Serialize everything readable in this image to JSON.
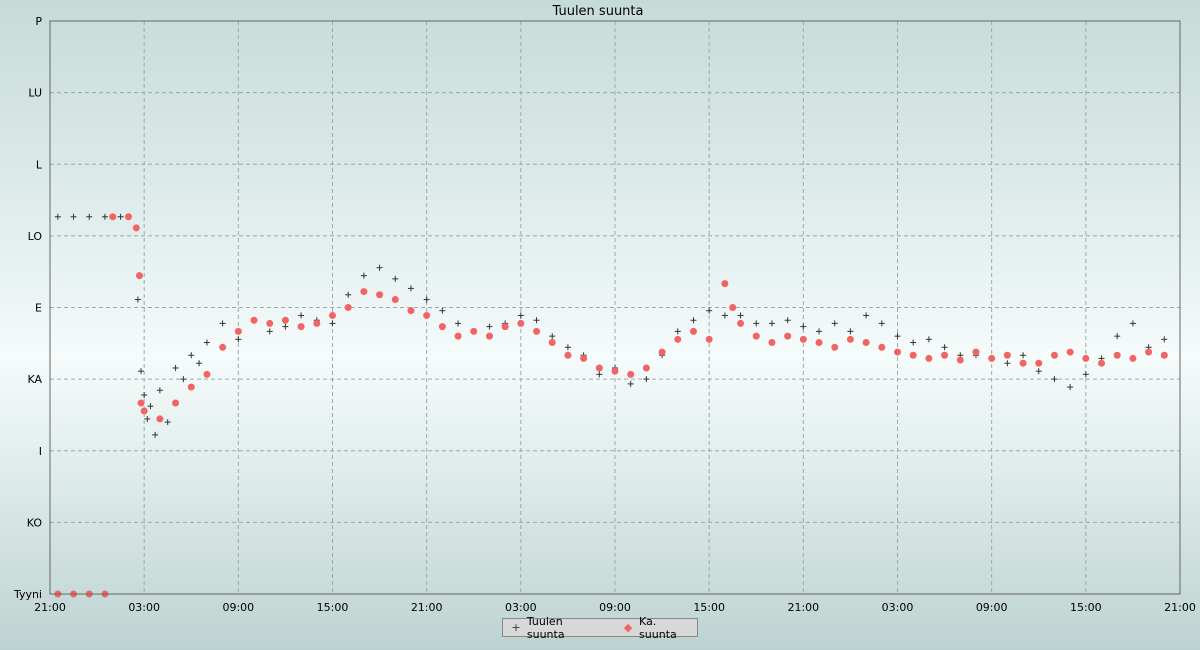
{
  "chart_data": {
    "type": "scatter",
    "title": "Tuulen suunta",
    "xlabel": "",
    "ylabel": "",
    "x_tick_labels": [
      "21:00",
      "03:00",
      "09:00",
      "15:00",
      "21:00",
      "03:00",
      "09:00",
      "15:00",
      "21:00",
      "03:00",
      "09:00",
      "15:00",
      "21:00"
    ],
    "x_range_hours": [
      0,
      72
    ],
    "y_tick_labels": [
      "Tyyni",
      "KO",
      "I",
      "KA",
      "E",
      "LO",
      "L",
      "LU",
      "P"
    ],
    "y_range": [
      0,
      360
    ],
    "grid": true,
    "legend_position": "bottom-center",
    "series": [
      {
        "name": "Tuulen suunta",
        "marker": "+",
        "color": "#333333",
        "points": [
          [
            0.5,
            237
          ],
          [
            1.5,
            237
          ],
          [
            2.5,
            237
          ],
          [
            3.5,
            237
          ],
          [
            4.5,
            237
          ],
          [
            5.0,
            237
          ],
          [
            5.6,
            185
          ],
          [
            5.8,
            140
          ],
          [
            6.0,
            125
          ],
          [
            6.2,
            110
          ],
          [
            6.4,
            118
          ],
          [
            6.7,
            100
          ],
          [
            7.0,
            128
          ],
          [
            7.5,
            108
          ],
          [
            8.0,
            142
          ],
          [
            8.5,
            135
          ],
          [
            9.0,
            150
          ],
          [
            9.5,
            145
          ],
          [
            10.0,
            158
          ],
          [
            11.0,
            170
          ],
          [
            12.0,
            160
          ],
          [
            13.0,
            172
          ],
          [
            14.0,
            165
          ],
          [
            15.0,
            168
          ],
          [
            16.0,
            175
          ],
          [
            17.0,
            172
          ],
          [
            18.0,
            170
          ],
          [
            19.0,
            188
          ],
          [
            20.0,
            200
          ],
          [
            21.0,
            205
          ],
          [
            22.0,
            198
          ],
          [
            23.0,
            192
          ],
          [
            24.0,
            185
          ],
          [
            25.0,
            178
          ],
          [
            26.0,
            170
          ],
          [
            27.0,
            165
          ],
          [
            28.0,
            168
          ],
          [
            29.0,
            170
          ],
          [
            30.0,
            175
          ],
          [
            31.0,
            172
          ],
          [
            32.0,
            162
          ],
          [
            33.0,
            155
          ],
          [
            34.0,
            150
          ],
          [
            35.0,
            138
          ],
          [
            36.0,
            142
          ],
          [
            37.0,
            132
          ],
          [
            38.0,
            135
          ],
          [
            39.0,
            150
          ],
          [
            40.0,
            165
          ],
          [
            41.0,
            172
          ],
          [
            42.0,
            178
          ],
          [
            43.0,
            175
          ],
          [
            44.0,
            175
          ],
          [
            45.0,
            170
          ],
          [
            46.0,
            170
          ],
          [
            47.0,
            172
          ],
          [
            48.0,
            168
          ],
          [
            49.0,
            165
          ],
          [
            50.0,
            170
          ],
          [
            51.0,
            165
          ],
          [
            52.0,
            175
          ],
          [
            53.0,
            170
          ],
          [
            54.0,
            162
          ],
          [
            55.0,
            158
          ],
          [
            56.0,
            160
          ],
          [
            57.0,
            155
          ],
          [
            58.0,
            150
          ],
          [
            59.0,
            150
          ],
          [
            60.0,
            148
          ],
          [
            61.0,
            145
          ],
          [
            62.0,
            150
          ],
          [
            63.0,
            140
          ],
          [
            64.0,
            135
          ],
          [
            65.0,
            130
          ],
          [
            66.0,
            138
          ],
          [
            67.0,
            148
          ],
          [
            68.0,
            162
          ],
          [
            69.0,
            170
          ],
          [
            70.0,
            155
          ],
          [
            71.0,
            160
          ]
        ]
      },
      {
        "name": "Ka. suunta",
        "marker": "dot",
        "color": "#f26464",
        "points": [
          [
            4.0,
            237
          ],
          [
            5.0,
            237
          ],
          [
            5.5,
            230
          ],
          [
            5.7,
            200
          ],
          [
            5.8,
            120
          ],
          [
            6.0,
            115
          ],
          [
            7.0,
            110
          ],
          [
            8.0,
            120
          ],
          [
            9.0,
            130
          ],
          [
            10.0,
            138
          ],
          [
            11.0,
            155
          ],
          [
            12.0,
            165
          ],
          [
            13.0,
            172
          ],
          [
            14.0,
            170
          ],
          [
            15.0,
            172
          ],
          [
            16.0,
            168
          ],
          [
            17.0,
            170
          ],
          [
            18.0,
            175
          ],
          [
            19.0,
            180
          ],
          [
            20.0,
            190
          ],
          [
            21.0,
            188
          ],
          [
            22.0,
            185
          ],
          [
            23.0,
            178
          ],
          [
            24.0,
            175
          ],
          [
            25.0,
            168
          ],
          [
            26.0,
            162
          ],
          [
            27.0,
            165
          ],
          [
            28.0,
            162
          ],
          [
            29.0,
            168
          ],
          [
            30.0,
            170
          ],
          [
            31.0,
            165
          ],
          [
            32.0,
            158
          ],
          [
            33.0,
            150
          ],
          [
            34.0,
            148
          ],
          [
            35.0,
            142
          ],
          [
            36.0,
            140
          ],
          [
            37.0,
            138
          ],
          [
            38.0,
            142
          ],
          [
            39.0,
            152
          ],
          [
            40.0,
            160
          ],
          [
            41.0,
            165
          ],
          [
            42.0,
            160
          ],
          [
            43.0,
            195
          ],
          [
            43.5,
            180
          ],
          [
            44.0,
            170
          ],
          [
            45.0,
            162
          ],
          [
            46.0,
            158
          ],
          [
            47.0,
            162
          ],
          [
            48.0,
            160
          ],
          [
            49.0,
            158
          ],
          [
            50.0,
            155
          ],
          [
            51.0,
            160
          ],
          [
            52.0,
            158
          ],
          [
            53.0,
            155
          ],
          [
            54.0,
            152
          ],
          [
            55.0,
            150
          ],
          [
            56.0,
            148
          ],
          [
            57.0,
            150
          ],
          [
            58.0,
            147
          ],
          [
            59.0,
            152
          ],
          [
            60.0,
            148
          ],
          [
            61.0,
            150
          ],
          [
            62.0,
            145
          ],
          [
            63.0,
            145
          ],
          [
            64.0,
            150
          ],
          [
            65.0,
            152
          ],
          [
            66.0,
            148
          ],
          [
            67.0,
            145
          ],
          [
            68.0,
            150
          ],
          [
            69.0,
            148
          ],
          [
            70.0,
            152
          ],
          [
            71.0,
            150
          ],
          [
            0.5,
            0
          ],
          [
            1.5,
            0
          ],
          [
            2.5,
            0
          ],
          [
            3.5,
            0
          ]
        ]
      }
    ]
  }
}
